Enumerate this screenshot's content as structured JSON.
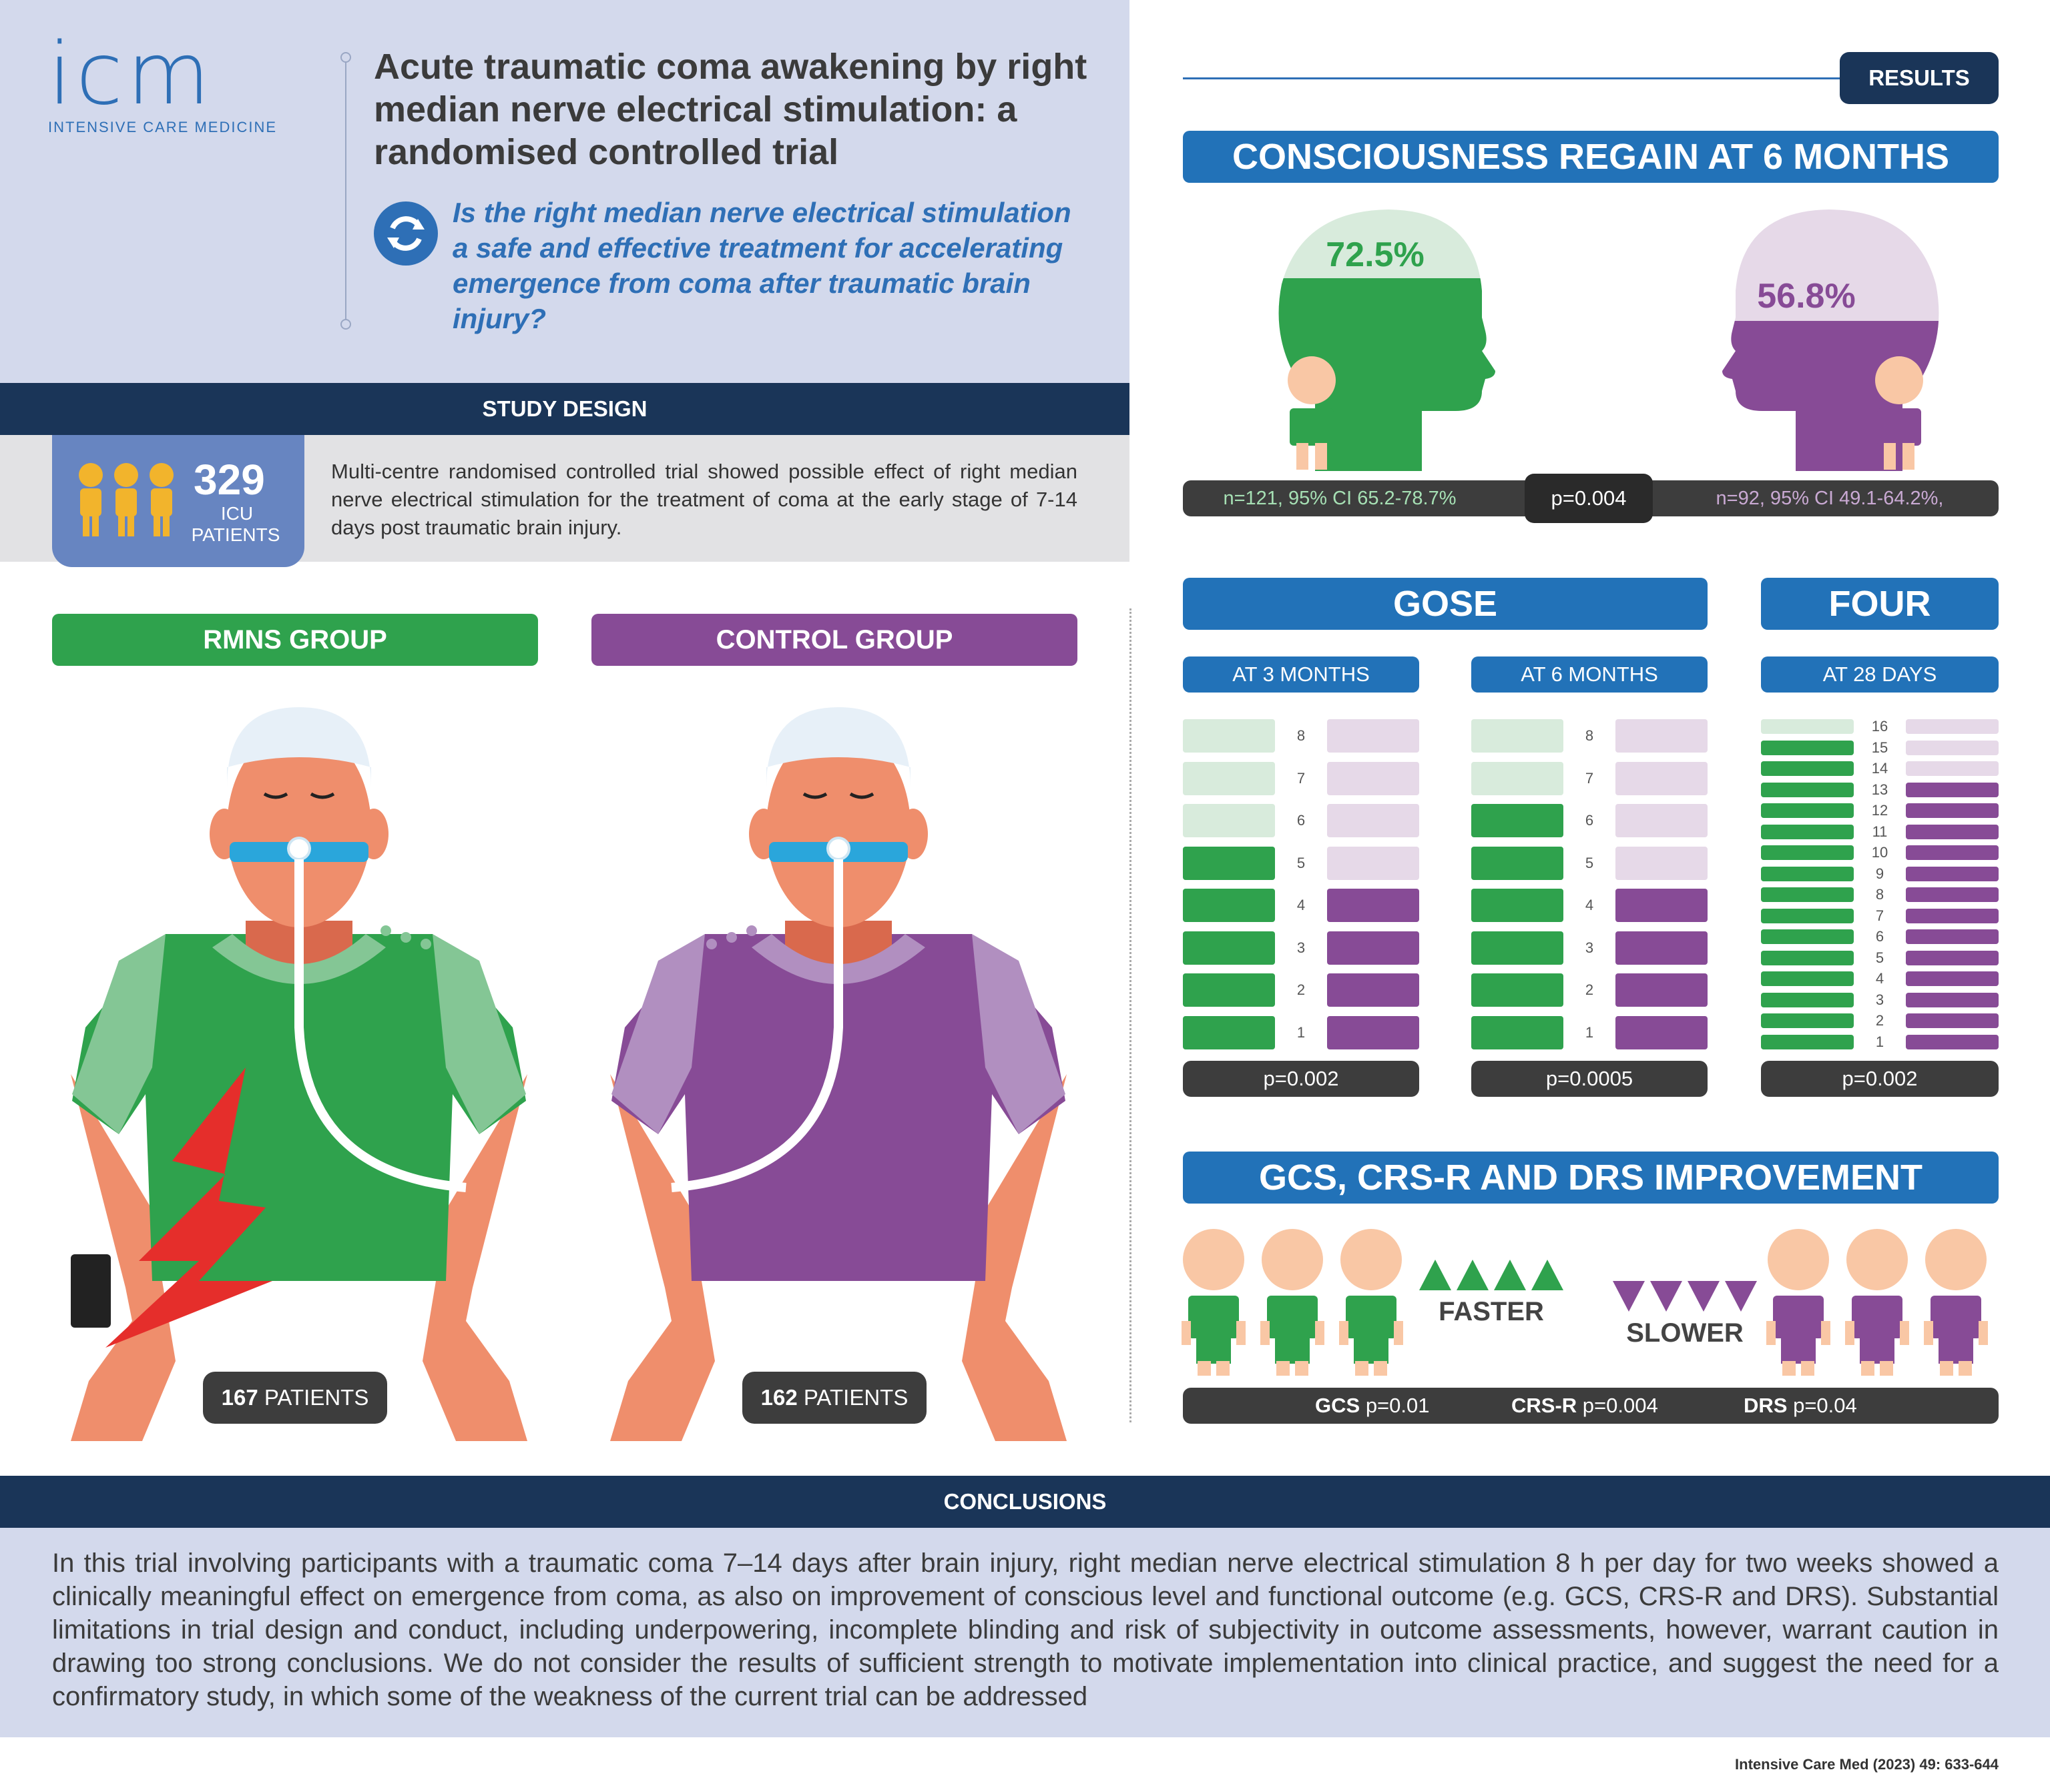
{
  "logo": {
    "text": "icm",
    "subtitle": "INTENSIVE CARE MEDICINE"
  },
  "title": "Acute traumatic coma awakening by right median nerve electrical stimulation: a randomised controlled trial",
  "question": "Is the right median nerve electrical stimulation a safe and effective treatment for accelerating emergence from coma after traumatic brain injury?",
  "study_design": {
    "header": "STUDY DESIGN",
    "count": "329",
    "count_label_1": "ICU",
    "count_label_2": "PATIENTS",
    "text": "Multi-centre randomised controlled trial showed possible effect of right median nerve electrical stimulation for the treatment of coma at the early stage of 7-14 days post traumatic brain injury."
  },
  "groups": {
    "rmns": {
      "label": "RMNS GROUP",
      "count": "167",
      "unit": "PATIENTS",
      "color": "#2fa24d"
    },
    "control": {
      "label": "CONTROL GROUP",
      "count": "162",
      "unit": "PATIENTS",
      "color": "#874b96"
    }
  },
  "results": {
    "header": "RESULTS",
    "consciousness": {
      "title": "CONSCIOUSNESS REGAIN AT 6 MONTHS",
      "rmns_pct": "72.5%",
      "control_pct": "56.8%",
      "rmns_fraction": 0.725,
      "control_fraction": 0.568,
      "rmns_stats": "n=121, 95% CI 65.2-78.7%",
      "p": "p=0.004",
      "control_stats": "n=92, 95% CI 49.1-64.2%,"
    },
    "gose": {
      "title": "GOSE",
      "m3": {
        "label": "AT 3 MONTHS",
        "p": "p=0.002",
        "rmns_level": 5,
        "control_level": 4
      },
      "m6": {
        "label": "AT 6 MONTHS",
        "p": "p=0.0005",
        "rmns_level": 6,
        "control_level": 4
      },
      "scale": [
        "8",
        "7",
        "6",
        "5",
        "4",
        "3",
        "2",
        "1"
      ]
    },
    "four": {
      "title": "FOUR",
      "label": "AT 28 DAYS",
      "p": "p=0.002",
      "rmns_level": 15,
      "control_level": 13,
      "scale": [
        "16",
        "15",
        "14",
        "13",
        "12",
        "11",
        "10",
        "9",
        "8",
        "7",
        "6",
        "5",
        "4",
        "3",
        "2",
        "1"
      ]
    },
    "improvement": {
      "title": "GCS, CRS-R AND DRS IMPROVEMENT",
      "faster": "FASTER",
      "slower": "SLOWER",
      "gcs": "GCS",
      "gcs_p": "p=0.01",
      "crsr": "CRS-R",
      "crsr_p": "p=0.004",
      "drs": "DRS",
      "drs_p": "p=0.04"
    }
  },
  "conclusions": {
    "header": "CONCLUSIONS",
    "text": "In this trial involving participants with a traumatic coma 7–14 days after brain injury, right median nerve electrical stimulation 8 h per day for two weeks showed a clinically meaningful effect on emergence from coma, as also on improvement of conscious level and functional outcome (e.g. GCS, CRS-R and DRS). Substantial limitations in trial design and conduct, including underpowering, incomplete blinding and risk of subjectivity in outcome assessments, however, warrant caution in drawing too strong conclusions. We do not consider the results of sufficient strength to motivate implementation into clinical practice, and suggest the need for a confirmatory study, in which some of the weakness of the current trial can be addressed"
  },
  "citation": "Intensive Care Med (2023) 49: 633-644"
}
